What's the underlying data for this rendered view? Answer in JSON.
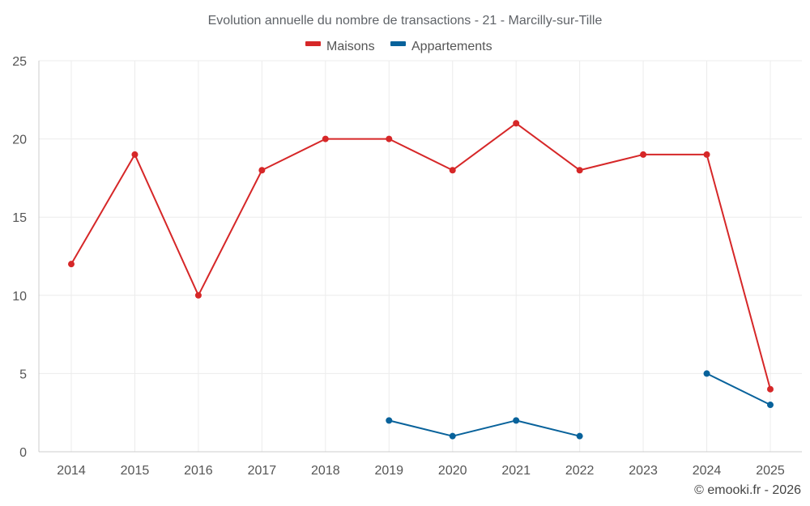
{
  "chart_data": {
    "type": "line",
    "title": "Evolution annuelle du nombre de transactions - 21 - Marcilly-sur-Tille",
    "xlabel": "",
    "ylabel": "",
    "categories": [
      "2014",
      "2015",
      "2016",
      "2017",
      "2018",
      "2019",
      "2020",
      "2021",
      "2022",
      "2023",
      "2024",
      "2025"
    ],
    "ylim": [
      0,
      25
    ],
    "yticks": [
      0,
      5,
      10,
      15,
      20,
      25
    ],
    "grid": true,
    "legend_position": "top-center",
    "series": [
      {
        "name": "Maisons",
        "color": "#d62728",
        "values": [
          12,
          19,
          10,
          18,
          20,
          20,
          18,
          21,
          18,
          19,
          19,
          4
        ]
      },
      {
        "name": "Appartements",
        "color": "#08629b",
        "values": [
          null,
          null,
          null,
          null,
          null,
          2,
          1,
          2,
          1,
          null,
          5,
          3
        ]
      }
    ]
  },
  "footer": {
    "copyright": "© emooki.fr - 2026"
  }
}
